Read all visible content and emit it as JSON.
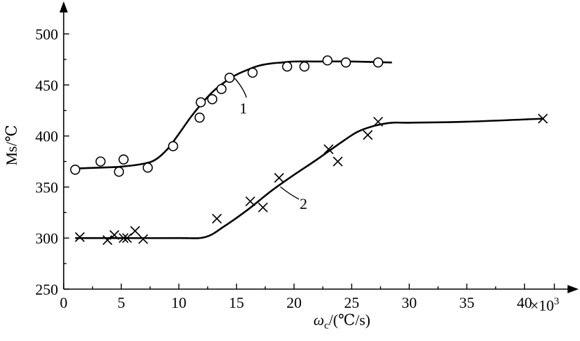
{
  "chart_data": {
    "type": "scatter",
    "title": "",
    "ylabel": "Ms/℃",
    "xlabel_symbol": "ω",
    "xlabel_subscript": "c",
    "xlabel_units": "/(℃/s)",
    "x_multiplier": "×10",
    "x_multiplier_exp": "3",
    "xlim": [
      0,
      42
    ],
    "ylim": [
      250,
      500
    ],
    "x_ticks": [
      "0",
      "5",
      "10",
      "15",
      "20",
      "25",
      "30",
      "35",
      "40"
    ],
    "y_ticks": [
      "250",
      "300",
      "350",
      "400",
      "450",
      "500"
    ],
    "series": [
      {
        "name": "1",
        "marker": "circle",
        "points": [
          [
            1.0,
            367
          ],
          [
            3.2,
            375
          ],
          [
            4.8,
            365
          ],
          [
            5.2,
            377
          ],
          [
            7.3,
            369
          ],
          [
            9.5,
            390
          ],
          [
            11.8,
            418
          ],
          [
            11.9,
            433
          ],
          [
            12.9,
            436
          ],
          [
            13.7,
            446
          ],
          [
            14.4,
            457
          ],
          [
            16.4,
            462
          ],
          [
            19.4,
            468
          ],
          [
            20.9,
            468
          ],
          [
            22.9,
            474
          ],
          [
            24.5,
            472
          ],
          [
            27.3,
            472
          ]
        ],
        "curve": [
          [
            0.8,
            368
          ],
          [
            3,
            369
          ],
          [
            5,
            370
          ],
          [
            7,
            373
          ],
          [
            8,
            377
          ],
          [
            9,
            387
          ],
          [
            10,
            402
          ],
          [
            11,
            418
          ],
          [
            12,
            432
          ],
          [
            13,
            444
          ],
          [
            14,
            453
          ],
          [
            15,
            460
          ],
          [
            16,
            465
          ],
          [
            17,
            469
          ],
          [
            18,
            471
          ],
          [
            19,
            472
          ],
          [
            20,
            473
          ],
          [
            22,
            473
          ],
          [
            25,
            473
          ],
          [
            28.5,
            472
          ]
        ]
      },
      {
        "name": "2",
        "marker": "x",
        "points": [
          [
            1.4,
            301
          ],
          [
            3.8,
            298
          ],
          [
            4.4,
            303
          ],
          [
            5.2,
            300
          ],
          [
            5.5,
            300
          ],
          [
            6.2,
            307
          ],
          [
            6.9,
            299
          ],
          [
            13.3,
            319
          ],
          [
            16.2,
            336
          ],
          [
            17.3,
            330
          ],
          [
            18.7,
            359
          ],
          [
            23.0,
            387
          ],
          [
            23.8,
            375
          ],
          [
            26.4,
            401
          ],
          [
            27.3,
            414
          ],
          [
            41.6,
            417
          ]
        ],
        "curve": [
          [
            1.0,
            300
          ],
          [
            5,
            300
          ],
          [
            10,
            300
          ],
          [
            12.3,
            301
          ],
          [
            14,
            312
          ],
          [
            16,
            328
          ],
          [
            18,
            346
          ],
          [
            20,
            362
          ],
          [
            22,
            377
          ],
          [
            24,
            393
          ],
          [
            25.5,
            404
          ],
          [
            27,
            410
          ],
          [
            28.5,
            413
          ],
          [
            30,
            413
          ],
          [
            35,
            414
          ],
          [
            41.7,
            417
          ]
        ]
      }
    ],
    "annotations": [
      "1",
      "2"
    ],
    "grid": false,
    "legend": "none"
  }
}
